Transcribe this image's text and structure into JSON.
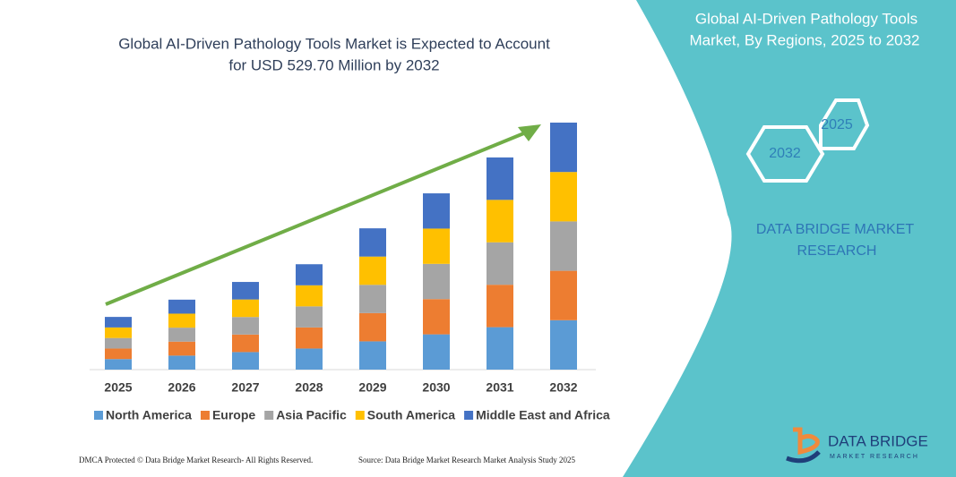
{
  "chart_data": {
    "type": "bar",
    "stacked": true,
    "title": [
      "Global AI-Driven Pathology Tools Market is Expected to Account",
      "for USD 529.70 Million by 2032"
    ],
    "categories": [
      "2025",
      "2026",
      "2027",
      "2028",
      "2029",
      "2030",
      "2031",
      "2032"
    ],
    "series": [
      {
        "name": "North America",
        "color": "#5b9bd5",
        "values": [
          22.6,
          30,
          37.6,
          45.2,
          60.6,
          75.6,
          91,
          105.94
        ]
      },
      {
        "name": "Europe",
        "color": "#ed7d31",
        "values": [
          22.6,
          30,
          37.6,
          45.2,
          60.6,
          75.6,
          91,
          105.94
        ]
      },
      {
        "name": "Asia Pacific",
        "color": "#a5a5a5",
        "values": [
          22.6,
          30,
          37.6,
          45.2,
          60.6,
          75.6,
          91,
          105.94
        ]
      },
      {
        "name": "South America",
        "color": "#ffc000",
        "values": [
          22.6,
          30,
          37.6,
          45.2,
          60.6,
          75.6,
          91,
          105.94
        ]
      },
      {
        "name": "Middle East and Africa",
        "color": "#4472c4",
        "values": [
          22.6,
          30,
          37.6,
          45.2,
          60.6,
          75.6,
          91,
          105.94
        ]
      }
    ],
    "legend": "bottom"
  },
  "panel": {
    "title": [
      "Global AI-Driven Pathology Tools",
      "Market, By Regions, 2025 to 2032"
    ],
    "hexagons": [
      "2025",
      "2032"
    ],
    "brand": [
      "DATA BRIDGE MARKET",
      "RESEARCH"
    ]
  },
  "footer": {
    "left": "DMCA Protected © Data Bridge Market Research- All Rights Reserved.",
    "right": "Source: Data Bridge Market Research Market Analysis Study 2025"
  },
  "logo": {
    "name": "DATA BRIDGE",
    "tagline": "MARKET RESEARCH"
  }
}
